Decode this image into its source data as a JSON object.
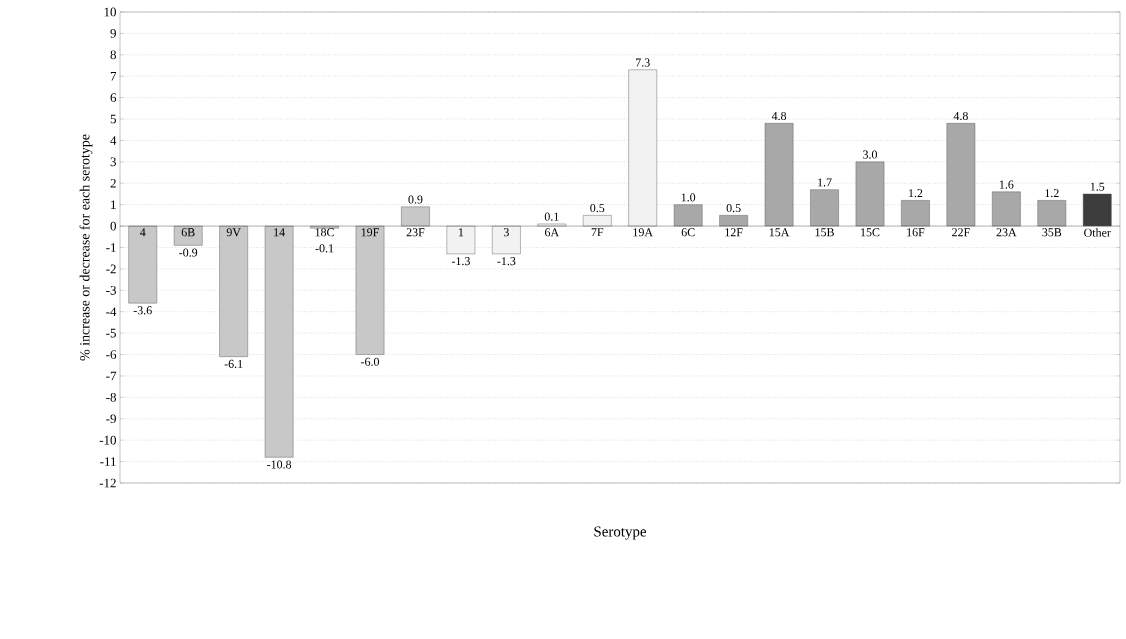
{
  "chart_data": {
    "type": "bar",
    "xlabel": "Serotype",
    "ylabel": "% increase or decrease for each serotype",
    "categories": [
      "4",
      "6B",
      "9V",
      "14",
      "18C",
      "19F",
      "23F",
      "1",
      "3",
      "6A",
      "7F",
      "19A",
      "6C",
      "12F",
      "15A",
      "15B",
      "15C",
      "16F",
      "22F",
      "23A",
      "35B",
      "Other"
    ],
    "values": [
      -3.6,
      -0.9,
      -6.1,
      -10.8,
      -0.1,
      -6.0,
      0.9,
      -1.3,
      -1.3,
      0.1,
      0.5,
      7.3,
      1.0,
      0.5,
      4.8,
      1.7,
      3.0,
      1.2,
      4.8,
      1.6,
      1.2,
      1.5
    ],
    "value_labels": [
      "-3.6",
      "-0.9",
      "-6.1",
      "-10.8",
      "-0.1",
      "-6.0",
      "0.9",
      "-1.3",
      "-1.3",
      "0.1",
      "0.5",
      "7.3",
      "1.0",
      "0.5",
      "4.8",
      "1.7",
      "3.0",
      "1.2",
      "4.8",
      "1.6",
      "1.2",
      "1.5"
    ],
    "colors": [
      "#c8c8c8",
      "#c8c8c8",
      "#c8c8c8",
      "#c8c8c8",
      "#c8c8c8",
      "#c8c8c8",
      "#c8c8c8",
      "#f2f2f2",
      "#f2f2f2",
      "#f2f2f2",
      "#f2f2f2",
      "#f2f2f2",
      "#a8a8a8",
      "#a8a8a8",
      "#a8a8a8",
      "#a8a8a8",
      "#a8a8a8",
      "#a8a8a8",
      "#a8a8a8",
      "#a8a8a8",
      "#a8a8a8",
      "#3c3c3c"
    ],
    "ylim": [
      -12,
      10
    ],
    "yticks": [
      -12,
      -11,
      -10,
      -9,
      -8,
      -7,
      -6,
      -5,
      -4,
      -3,
      -2,
      -1,
      0,
      1,
      2,
      3,
      4,
      5,
      6,
      7,
      8,
      9,
      10
    ],
    "grid": "y"
  }
}
